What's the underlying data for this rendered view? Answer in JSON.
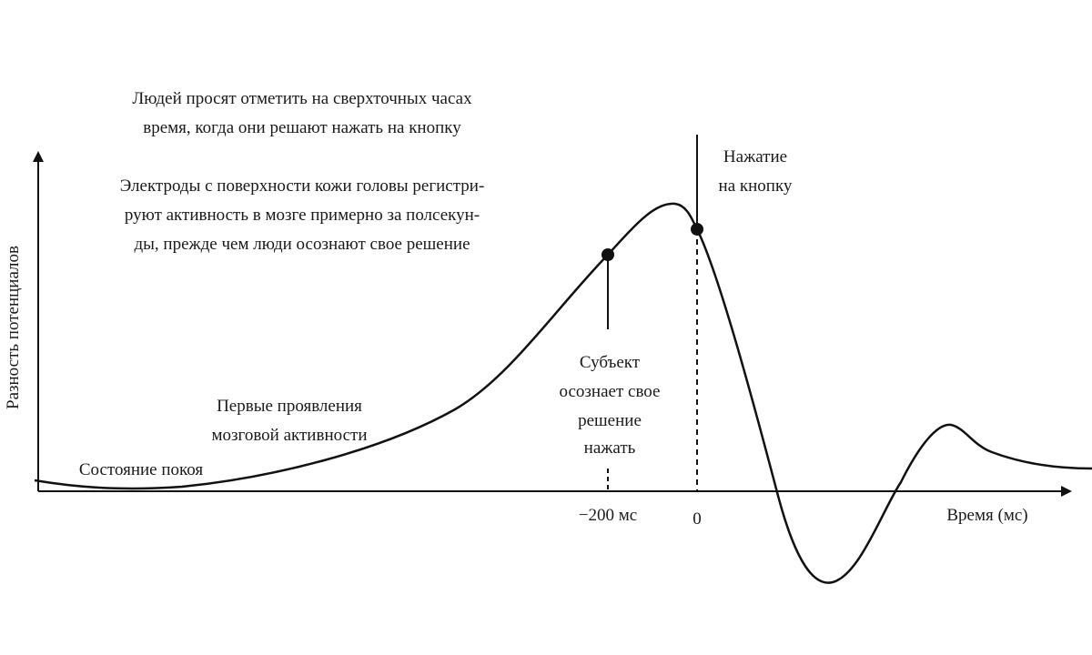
{
  "axes": {
    "y_label": "Разность потенциалов",
    "x_label": "Время (мс)",
    "x_ticks": [
      "−200 мс",
      "0"
    ]
  },
  "instructions": [
    "Людей просят отметить на сверхточных часах",
    "время, когда они решают нажать на кнопку"
  ],
  "electrodes": [
    "Электроды с поверхности кожи головы регистри-",
    "руют активность в мозге примерно за полсекун-",
    "ды, прежде чем люди осознают свое решение"
  ],
  "press": [
    "Нажатие",
    "на кнопку"
  ],
  "subject": [
    "Субъект",
    "осознает свое",
    "решение",
    "нажать"
  ],
  "first_activity": [
    "Первые проявления",
    "мозговой активности"
  ],
  "rest": "Состояние покоя"
}
